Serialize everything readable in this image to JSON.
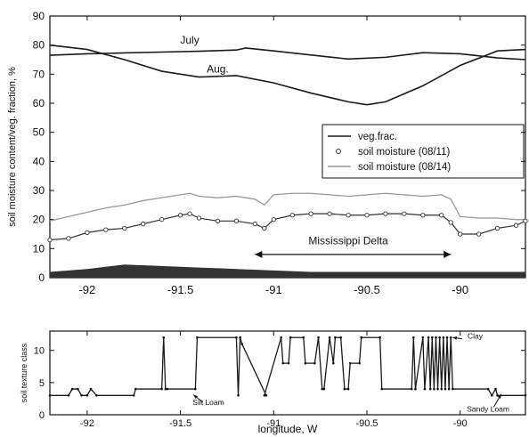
{
  "chart_data": [
    {
      "type": "line",
      "xlabel": "",
      "ylabel": "soil moisture content/veg. fraction, %",
      "xlim": [
        -92.2,
        -89.65
      ],
      "ylim": [
        0,
        90
      ],
      "x_ticks": [
        -92,
        -91.5,
        -91,
        -90.5,
        -90
      ],
      "x_tick_labels": [
        "-92",
        "-91.5",
        "-91",
        "-90.5",
        "-90"
      ],
      "y_ticks": [
        0,
        10,
        20,
        30,
        40,
        50,
        60,
        70,
        80,
        90
      ],
      "y_tick_labels": [
        "0",
        "10",
        "20",
        "30",
        "40",
        "50",
        "60",
        "70",
        "80",
        "90"
      ],
      "grid": false,
      "legend_position": "center-right",
      "legend": [
        "veg.frac.",
        "soil moisture (08/11)",
        "soil moisture (08/14)"
      ],
      "series": [
        {
          "name": "veg.frac.",
          "label": "July",
          "color": "#1a1a1a",
          "x": [
            -92.2,
            -92.0,
            -91.8,
            -91.6,
            -91.4,
            -91.2,
            -91.15,
            -91.0,
            -90.8,
            -90.6,
            -90.4,
            -90.2,
            -90.0,
            -89.8,
            -89.65
          ],
          "y": [
            76.5,
            77.0,
            77.3,
            77.6,
            77.9,
            78.3,
            79.0,
            78.0,
            76.6,
            75.2,
            75.8,
            77.4,
            77.0,
            75.6,
            75.0
          ]
        },
        {
          "name": "veg.frac.",
          "label": "Aug.",
          "color": "#1a1a1a",
          "x": [
            -92.2,
            -92.0,
            -91.8,
            -91.6,
            -91.4,
            -91.2,
            -91.0,
            -90.8,
            -90.6,
            -90.5,
            -90.4,
            -90.2,
            -90.0,
            -89.8,
            -89.65
          ],
          "y": [
            80.0,
            78.5,
            75.0,
            71.0,
            69.0,
            69.5,
            67.0,
            63.5,
            60.5,
            59.5,
            60.5,
            66.0,
            73.0,
            78.0,
            78.5
          ]
        },
        {
          "name": "soil moisture (08/11)",
          "color": "#333333",
          "marker": "o",
          "x": [
            -92.2,
            -92.1,
            -92.0,
            -91.9,
            -91.8,
            -91.7,
            -91.6,
            -91.5,
            -91.45,
            -91.4,
            -91.3,
            -91.2,
            -91.1,
            -91.05,
            -91.0,
            -90.9,
            -90.8,
            -90.7,
            -90.6,
            -90.5,
            -90.4,
            -90.3,
            -90.2,
            -90.1,
            -90.05,
            -90.0,
            -89.9,
            -89.8,
            -89.7,
            -89.65
          ],
          "y": [
            13,
            13.5,
            15.5,
            16.5,
            17,
            18.5,
            20,
            21.5,
            22,
            20.5,
            19.5,
            19.5,
            18.5,
            17,
            20,
            21.5,
            22,
            22,
            21.5,
            21.5,
            22,
            22,
            21.5,
            21.5,
            19,
            15,
            15,
            17,
            18,
            19.5
          ]
        },
        {
          "name": "soil moisture (08/14)",
          "color": "#999999",
          "x": [
            -92.2,
            -92.1,
            -92.0,
            -91.9,
            -91.8,
            -91.7,
            -91.6,
            -91.5,
            -91.45,
            -91.4,
            -91.3,
            -91.2,
            -91.1,
            -91.05,
            -91.0,
            -90.9,
            -90.8,
            -90.7,
            -90.6,
            -90.5,
            -90.4,
            -90.3,
            -90.2,
            -90.1,
            -90.05,
            -90.0,
            -89.9,
            -89.8,
            -89.7,
            -89.65
          ],
          "y": [
            19.5,
            21,
            22.5,
            24,
            25,
            26.5,
            27.5,
            28.5,
            29,
            28,
            27.5,
            28,
            27,
            25,
            28.5,
            29,
            29,
            28.5,
            28,
            28.5,
            29,
            28.5,
            28,
            28.5,
            27,
            21,
            20.5,
            20.5,
            20,
            20
          ]
        },
        {
          "name": "",
          "type": "bar-fill",
          "color": "#333333",
          "x": [
            -92.2,
            -92.0,
            -91.8,
            -91.6,
            -91.4,
            -91.2,
            -91.0,
            -90.8,
            -90.6,
            -90.4,
            -90.2,
            -90.0,
            -89.8,
            -89.65
          ],
          "y": [
            2,
            3,
            4.5,
            4,
            3.5,
            3,
            2.5,
            2,
            2,
            2,
            2,
            2,
            2,
            2
          ]
        }
      ],
      "annotations": [
        {
          "text": "July",
          "x": -91.45,
          "y": 80.5
        },
        {
          "text": "Aug.",
          "x": -91.3,
          "y": 70.5
        },
        {
          "text": "Mississippi Delta",
          "x": -90.6,
          "y": 11.5
        }
      ],
      "arrow": {
        "x_from": -91.1,
        "x_to": -90.05,
        "y": 8
      }
    },
    {
      "type": "line",
      "xlabel": "longitude, W",
      "ylabel": "soil texture class",
      "xlim": [
        -92.2,
        -89.65
      ],
      "ylim": [
        0,
        13
      ],
      "x_ticks": [
        -92,
        -91.5,
        -91,
        -90.5,
        -90
      ],
      "x_tick_labels": [
        "-92",
        "-91.5",
        "-91",
        "-90.5",
        "-90"
      ],
      "y_ticks": [
        0,
        5,
        10
      ],
      "y_tick_labels": [
        "0",
        "5",
        "10"
      ],
      "grid": false,
      "series": [
        {
          "name": "",
          "color": "#1a1a1a",
          "marker": "dot",
          "x": [
            -92.2,
            -92.1,
            -92.08,
            -92.05,
            -92.03,
            -92.0,
            -91.98,
            -91.95,
            -91.75,
            -91.74,
            -91.6,
            -91.59,
            -91.58,
            -91.57,
            -91.42,
            -91.41,
            -91.2,
            -91.19,
            -91.18,
            -91.17,
            -91.04,
            -91.05,
            -90.96,
            -90.95,
            -90.92,
            -90.91,
            -90.84,
            -90.83,
            -90.78,
            -90.76,
            -90.74,
            -90.73,
            -90.7,
            -90.68,
            -90.67,
            -90.64,
            -90.62,
            -90.6,
            -90.59,
            -90.54,
            -90.53,
            -90.43,
            -90.42,
            -90.26,
            -90.25,
            -90.24,
            -90.2,
            -90.19,
            -90.17,
            -90.16,
            -90.15,
            -90.14,
            -90.13,
            -90.12,
            -90.11,
            -90.1,
            -90.09,
            -90.08,
            -90.07,
            -90.06,
            -90.05,
            -90.04,
            -89.85,
            -89.83,
            -89.81,
            -89.8,
            -89.65
          ],
          "y": [
            3,
            3,
            4,
            4,
            3,
            3,
            4,
            3,
            3,
            4,
            4,
            12,
            4,
            4,
            4,
            12,
            12,
            3,
            12,
            11,
            3,
            3,
            12,
            8,
            8,
            12,
            12,
            8,
            8,
            12,
            4,
            4,
            12,
            8,
            12,
            12,
            4,
            4,
            8,
            8,
            12,
            12,
            4,
            4,
            12,
            4,
            12,
            4,
            12,
            4,
            12,
            4,
            12,
            4,
            12,
            4,
            12,
            4,
            12,
            4,
            12,
            4,
            4,
            3,
            4,
            3,
            3
          ]
        }
      ],
      "annotations": [
        {
          "text": "Silt Loam",
          "x": -91.35,
          "y": 1.5
        },
        {
          "text": "Clay",
          "x": -89.92,
          "y": 11.8
        },
        {
          "text": "Sandy Loam",
          "x": -89.85,
          "y": 0.5
        }
      ]
    }
  ]
}
